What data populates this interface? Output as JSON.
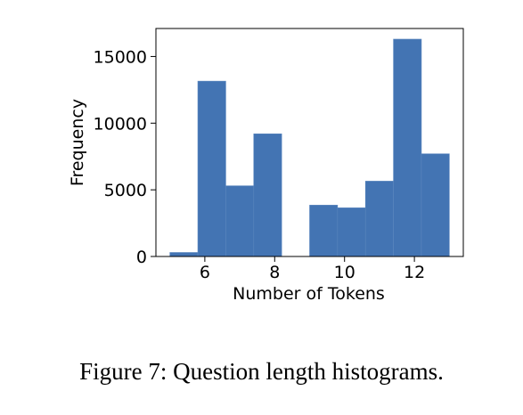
{
  "caption": "Figure 7: Question length histograms.",
  "chart_data": {
    "type": "bar",
    "bins": [
      {
        "x0": 5.0,
        "x1": 5.8,
        "value": 300
      },
      {
        "x0": 5.8,
        "x1": 6.6,
        "value": 13150
      },
      {
        "x0": 6.6,
        "x1": 7.4,
        "value": 5300
      },
      {
        "x0": 7.4,
        "x1": 8.2,
        "value": 9200
      },
      {
        "x0": 8.2,
        "x1": 9.0,
        "value": 0
      },
      {
        "x0": 9.0,
        "x1": 9.8,
        "value": 3850
      },
      {
        "x0": 9.8,
        "x1": 10.6,
        "value": 3650
      },
      {
        "x0": 10.6,
        "x1": 11.4,
        "value": 5650
      },
      {
        "x0": 11.4,
        "x1": 12.2,
        "value": 16300
      },
      {
        "x0": 12.2,
        "x1": 13.0,
        "value": 7700
      }
    ],
    "xlabel": "Number of Tokens",
    "ylabel": "Frequency",
    "xlim": [
      4.6,
      13.4
    ],
    "ylim": [
      0,
      17100
    ],
    "xticks": [
      6,
      8,
      10,
      12
    ],
    "yticks": [
      0,
      5000,
      10000,
      15000
    ],
    "bar_color": "#4374b3",
    "grid": false
  }
}
